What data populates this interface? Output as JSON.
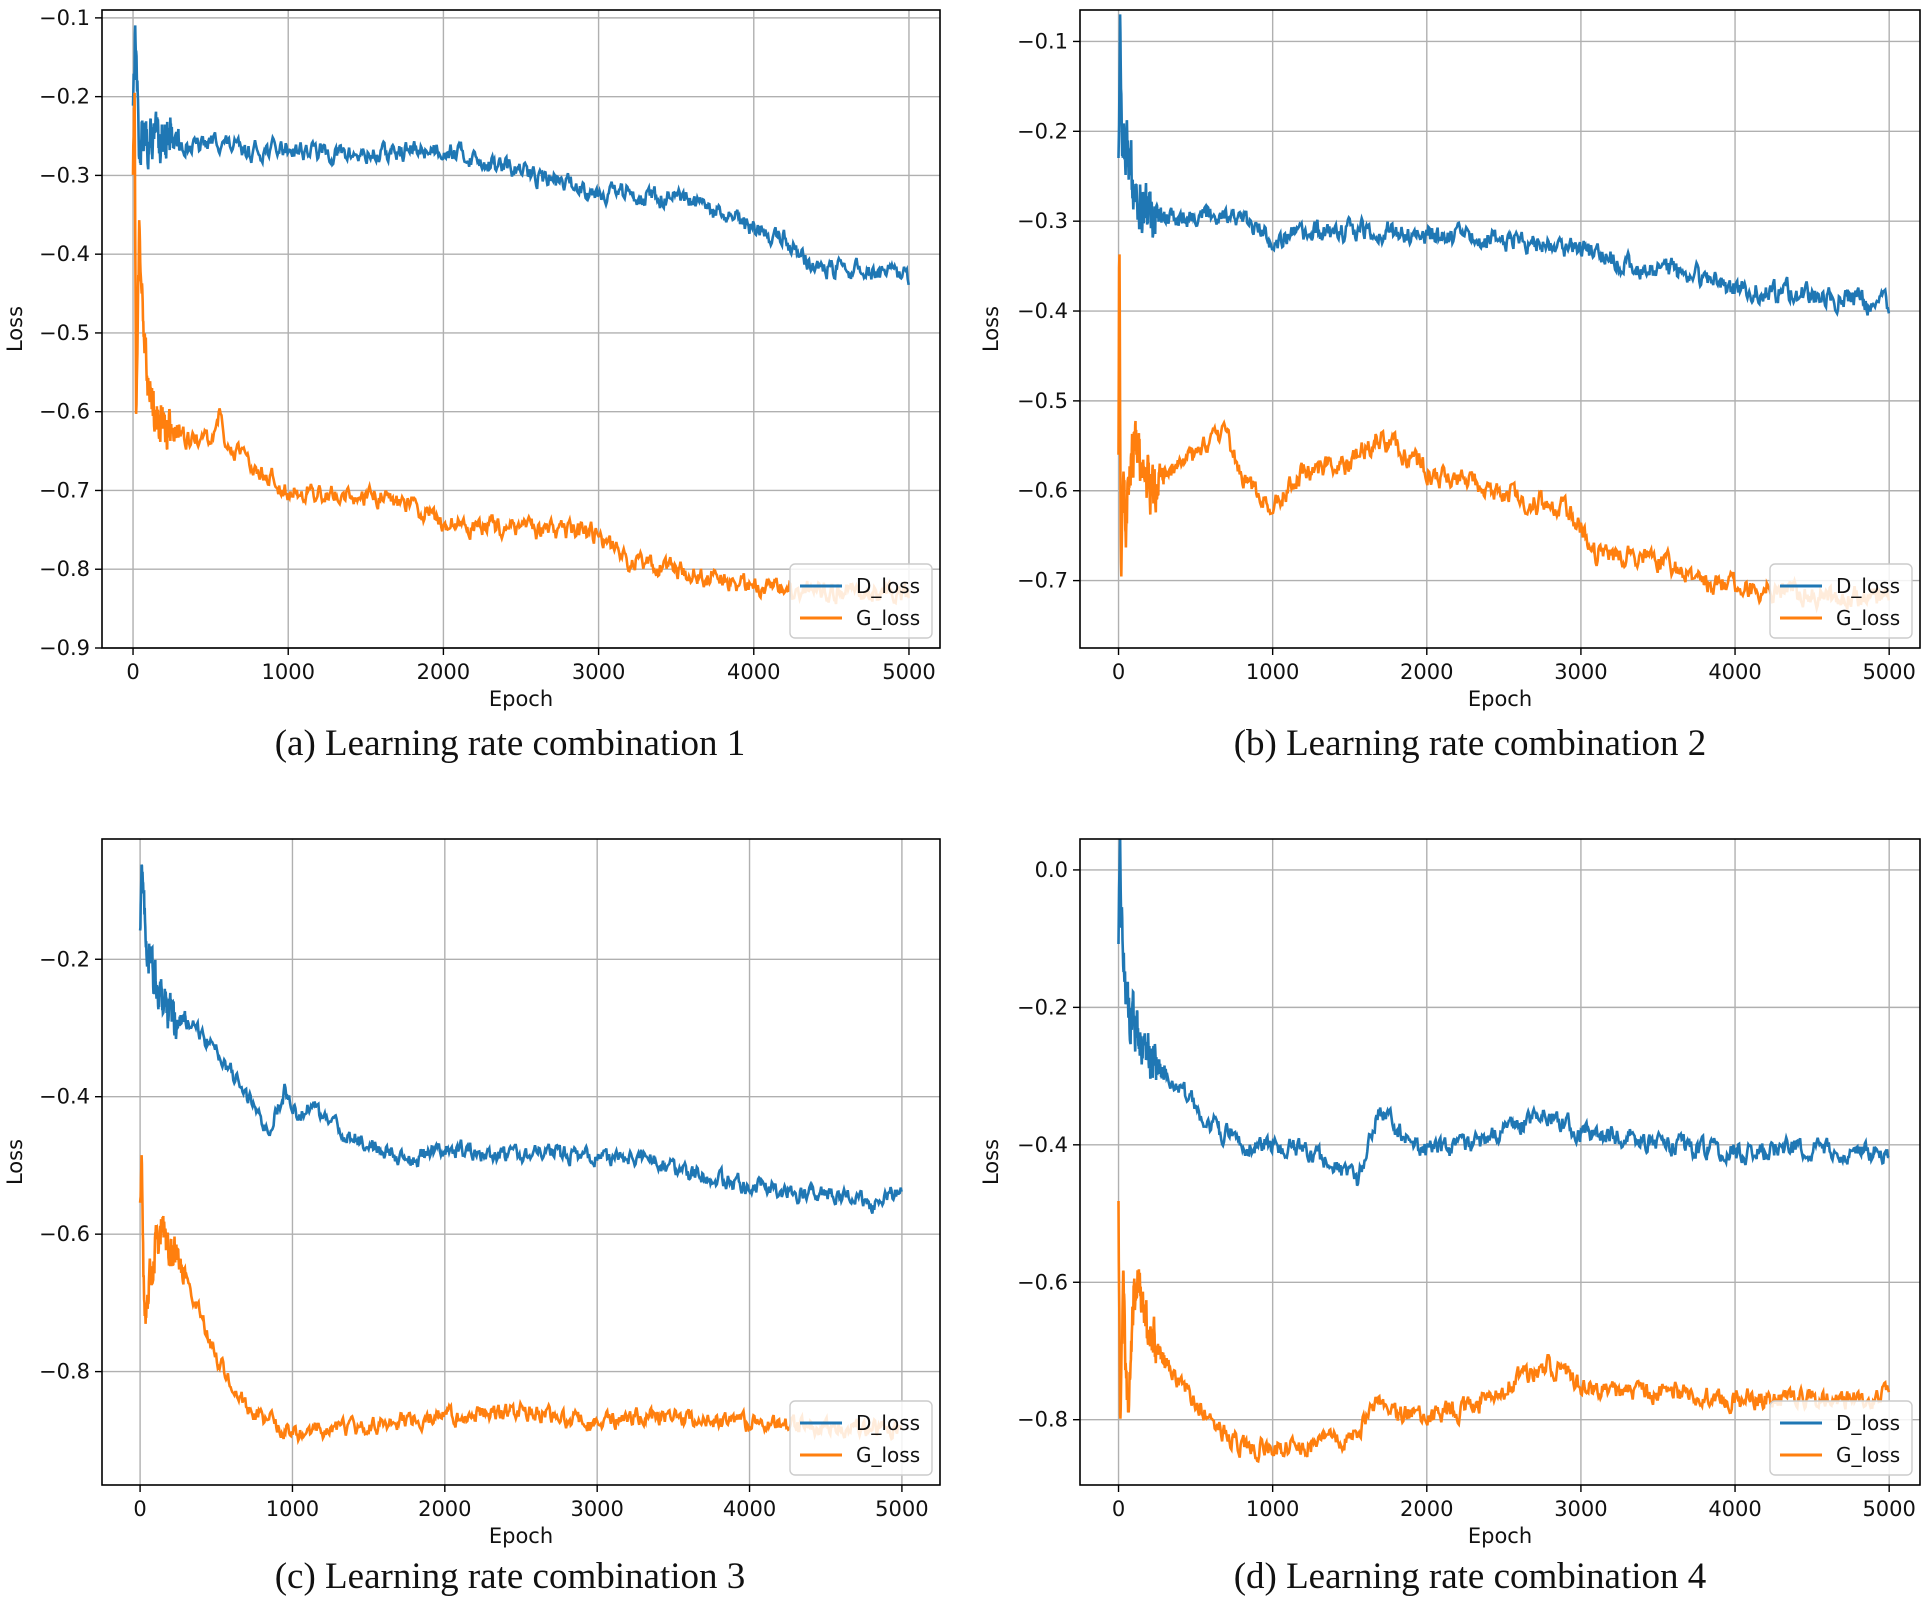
{
  "colors": {
    "d_loss": "#1f77b4",
    "g_loss": "#ff7f0e",
    "grid": "#b0b0b0",
    "axis": "#000000"
  },
  "chart_data": [
    {
      "type": "line",
      "caption": "(a) Learning rate combination 1",
      "xlabel": "Epoch",
      "ylabel": "Loss",
      "xlim": [
        -200,
        5200
      ],
      "ylim": [
        -0.9,
        -0.09
      ],
      "x_ticks": [
        0,
        1000,
        2000,
        3000,
        4000,
        5000
      ],
      "x_tick_labels": [
        "0",
        "1000",
        "2000",
        "3000",
        "4000",
        "5000"
      ],
      "y_ticks": [
        -0.9,
        -0.8,
        -0.7,
        -0.6,
        -0.5,
        -0.4,
        -0.3,
        -0.2,
        -0.1
      ],
      "y_tick_labels": [
        "−0.9",
        "−0.8",
        "−0.7",
        "−0.6",
        "−0.5",
        "−0.4",
        "−0.3",
        "−0.2",
        "−0.1"
      ],
      "grid": true,
      "legend": "lower-right",
      "noise": 0.01,
      "series": [
        {
          "name": "D_loss",
          "x": [
            0,
            15,
            40,
            60,
            100,
            200,
            400,
            550,
            700,
            1000,
            1200,
            1500,
            2000,
            2300,
            2600,
            3000,
            3300,
            3600,
            3900,
            4100,
            4200,
            4350,
            4450,
            4700,
            5000
          ],
          "y": [
            -0.2,
            -0.11,
            -0.27,
            -0.25,
            -0.26,
            -0.25,
            -0.265,
            -0.255,
            -0.27,
            -0.265,
            -0.27,
            -0.275,
            -0.265,
            -0.285,
            -0.3,
            -0.32,
            -0.325,
            -0.335,
            -0.36,
            -0.375,
            -0.38,
            -0.41,
            -0.42,
            -0.42,
            -0.43
          ]
        },
        {
          "name": "G_loss",
          "x": [
            0,
            10,
            20,
            40,
            70,
            100,
            150,
            300,
            500,
            560,
            600,
            800,
            1000,
            1300,
            1700,
            2000,
            2200,
            2500,
            3000,
            3200,
            3600,
            4000,
            4300,
            4600,
            5000
          ],
          "y": [
            -0.3,
            -0.2,
            -0.63,
            -0.38,
            -0.5,
            -0.56,
            -0.61,
            -0.63,
            -0.64,
            -0.6,
            -0.645,
            -0.67,
            -0.7,
            -0.705,
            -0.71,
            -0.74,
            -0.745,
            -0.75,
            -0.755,
            -0.79,
            -0.805,
            -0.82,
            -0.825,
            -0.83,
            -0.835
          ]
        }
      ]
    },
    {
      "type": "line",
      "caption": "(b) Learning rate combination 2",
      "xlabel": "Epoch",
      "ylabel": "Loss",
      "xlim": [
        -250,
        5200
      ],
      "ylim": [
        -0.775,
        -0.065
      ],
      "x_ticks": [
        0,
        1000,
        2000,
        3000,
        4000,
        5000
      ],
      "x_tick_labels": [
        "0",
        "1000",
        "2000",
        "3000",
        "4000",
        "5000"
      ],
      "y_ticks": [
        -0.7,
        -0.6,
        -0.5,
        -0.4,
        -0.3,
        -0.2,
        -0.1
      ],
      "y_tick_labels": [
        "−0.7",
        "−0.6",
        "−0.5",
        "−0.4",
        "−0.3",
        "−0.2",
        "−0.1"
      ],
      "grid": true,
      "legend": "lower-right",
      "noise": 0.01,
      "series": [
        {
          "name": "D_loss",
          "x": [
            0,
            10,
            20,
            40,
            70,
            100,
            150,
            300,
            700,
            1000,
            1500,
            2000,
            2300,
            2600,
            3000,
            3300,
            3600,
            4000,
            4400,
            4800,
            5000
          ],
          "y": [
            -0.22,
            -0.09,
            -0.2,
            -0.22,
            -0.23,
            -0.26,
            -0.29,
            -0.295,
            -0.29,
            -0.32,
            -0.31,
            -0.315,
            -0.32,
            -0.32,
            -0.33,
            -0.35,
            -0.355,
            -0.375,
            -0.38,
            -0.39,
            -0.395
          ]
        },
        {
          "name": "G_loss",
          "x": [
            0,
            5,
            15,
            30,
            50,
            80,
            120,
            200,
            300,
            500,
            700,
            800,
            1000,
            1200,
            1500,
            1700,
            2000,
            2300,
            2600,
            2900,
            3000,
            3100,
            3400,
            3800,
            4200,
            4600,
            5000
          ],
          "y": [
            -0.58,
            -0.33,
            -0.72,
            -0.6,
            -0.64,
            -0.56,
            -0.55,
            -0.6,
            -0.58,
            -0.56,
            -0.54,
            -0.58,
            -0.62,
            -0.58,
            -0.57,
            -0.54,
            -0.58,
            -0.59,
            -0.61,
            -0.62,
            -0.64,
            -0.67,
            -0.67,
            -0.7,
            -0.71,
            -0.72,
            -0.72
          ]
        }
      ]
    },
    {
      "type": "line",
      "caption": "(c) Learning rate combination 3",
      "xlabel": "Epoch",
      "ylabel": "Loss",
      "xlim": [
        -250,
        5250
      ],
      "ylim": [
        -0.965,
        -0.025
      ],
      "x_ticks": [
        0,
        1000,
        2000,
        3000,
        4000,
        5000
      ],
      "x_tick_labels": [
        "0",
        "1000",
        "2000",
        "3000",
        "4000",
        "5000"
      ],
      "y_ticks": [
        -0.8,
        -0.6,
        -0.4,
        -0.2
      ],
      "y_tick_labels": [
        "−0.8",
        "−0.6",
        "−0.4",
        "−0.2"
      ],
      "grid": true,
      "legend": "lower-right",
      "noise": 0.01,
      "series": [
        {
          "name": "D_loss",
          "x": [
            0,
            10,
            30,
            60,
            100,
            150,
            200,
            300,
            500,
            700,
            850,
            950,
            1050,
            1100,
            1300,
            1600,
            1800,
            2000,
            2300,
            2600,
            3000,
            3300,
            3600,
            4000,
            4300,
            4600,
            4800,
            5000
          ],
          "y": [
            -0.15,
            -0.05,
            -0.15,
            -0.2,
            -0.23,
            -0.25,
            -0.28,
            -0.29,
            -0.33,
            -0.4,
            -0.45,
            -0.39,
            -0.43,
            -0.41,
            -0.45,
            -0.48,
            -0.49,
            -0.47,
            -0.49,
            -0.48,
            -0.49,
            -0.49,
            -0.51,
            -0.53,
            -0.54,
            -0.54,
            -0.56,
            -0.535
          ]
        },
        {
          "name": "G_loss",
          "x": [
            0,
            10,
            30,
            60,
            100,
            150,
            300,
            500,
            700,
            900,
            1000,
            1300,
            1600,
            2000,
            2300,
            2500,
            2800,
            3000,
            3300,
            3600,
            4000,
            4300,
            4600,
            5000
          ],
          "y": [
            -0.55,
            -0.51,
            -0.74,
            -0.68,
            -0.62,
            -0.6,
            -0.66,
            -0.78,
            -0.85,
            -0.88,
            -0.89,
            -0.885,
            -0.875,
            -0.865,
            -0.86,
            -0.855,
            -0.87,
            -0.875,
            -0.865,
            -0.87,
            -0.875,
            -0.88,
            -0.88,
            -0.885
          ]
        }
      ]
    },
    {
      "type": "line",
      "caption": "(d) Learning rate combination 4",
      "xlabel": "Epoch",
      "ylabel": "Loss",
      "xlim": [
        -250,
        5200
      ],
      "ylim": [
        -0.895,
        0.045
      ],
      "x_ticks": [
        0,
        1000,
        2000,
        3000,
        4000,
        5000
      ],
      "x_tick_labels": [
        "0",
        "1000",
        "2000",
        "3000",
        "4000",
        "5000"
      ],
      "y_ticks": [
        -0.8,
        -0.6,
        -0.4,
        -0.2,
        0.0
      ],
      "y_tick_labels": [
        "−0.8",
        "−0.6",
        "−0.4",
        "−0.2",
        "0.0"
      ],
      "grid": true,
      "legend": "lower-right",
      "noise": 0.012,
      "series": [
        {
          "name": "D_loss",
          "x": [
            0,
            10,
            30,
            60,
            100,
            200,
            400,
            600,
            800,
            1000,
            1200,
            1400,
            1550,
            1600,
            1650,
            1700,
            1800,
            2000,
            2300,
            2600,
            2800,
            3000,
            3300,
            3600,
            4000,
            4300,
            4600,
            5000
          ],
          "y": [
            -0.1,
            0.0,
            -0.12,
            -0.2,
            -0.22,
            -0.27,
            -0.32,
            -0.37,
            -0.4,
            -0.4,
            -0.41,
            -0.43,
            -0.46,
            -0.42,
            -0.37,
            -0.35,
            -0.38,
            -0.41,
            -0.4,
            -0.37,
            -0.36,
            -0.38,
            -0.39,
            -0.4,
            -0.41,
            -0.405,
            -0.41,
            -0.41
          ]
        },
        {
          "name": "G_loss",
          "x": [
            0,
            10,
            30,
            60,
            100,
            130,
            200,
            400,
            600,
            800,
            1000,
            1300,
            1550,
            1650,
            1700,
            1800,
            2000,
            2300,
            2600,
            2800,
            3000,
            3300,
            3600,
            4000,
            4300,
            4600,
            5000
          ],
          "y": [
            -0.5,
            -0.8,
            -0.6,
            -0.8,
            -0.62,
            -0.6,
            -0.68,
            -0.75,
            -0.8,
            -0.84,
            -0.84,
            -0.835,
            -0.82,
            -0.78,
            -0.77,
            -0.79,
            -0.8,
            -0.78,
            -0.74,
            -0.72,
            -0.75,
            -0.76,
            -0.76,
            -0.77,
            -0.77,
            -0.77,
            -0.765
          ]
        }
      ]
    }
  ]
}
